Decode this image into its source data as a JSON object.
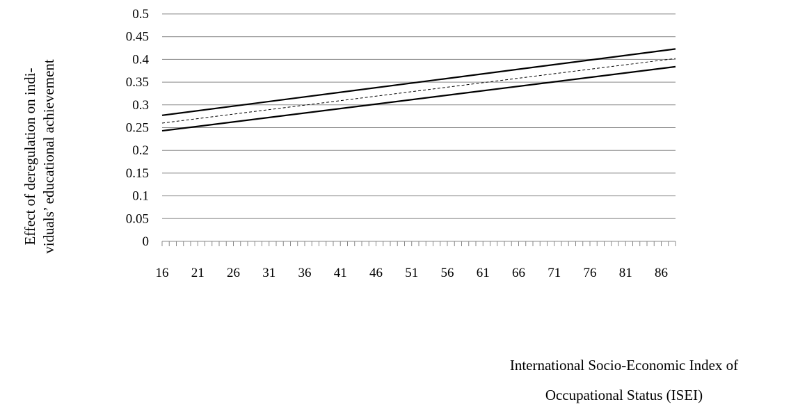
{
  "chart_data": {
    "type": "line",
    "title": "",
    "ylabel": [
      "Effect of deregulation on indi-",
      "viduals’ educational achievement"
    ],
    "xlabel": [
      "International Socio-Economic Index of",
      "Occupational Status (ISEI)"
    ],
    "xlim": [
      16,
      88
    ],
    "ylim": [
      0,
      0.5
    ],
    "ytick_labels": [
      "0",
      "0.05",
      "0.1",
      "0.15",
      "0.2",
      "0.25",
      "0.3",
      "0.35",
      "0.4",
      "0.45",
      "0.5"
    ],
    "xtick_labels": [
      "16",
      "21",
      "26",
      "31",
      "36",
      "41",
      "46",
      "51",
      "56",
      "61",
      "66",
      "71",
      "76",
      "81",
      "86"
    ],
    "grid": true,
    "series": [
      {
        "values_at": [
          16,
          88
        ],
        "values": [
          0.277,
          0.423
        ],
        "style": "solid"
      },
      {
        "values_at": [
          16,
          88
        ],
        "values": [
          0.26,
          0.402
        ],
        "style": "dashed"
      },
      {
        "values_at": [
          16,
          88
        ],
        "values": [
          0.243,
          0.384
        ],
        "style": "solid"
      }
    ]
  },
  "colors": {
    "grid": "#888888",
    "axis": "#888888",
    "line": "#000000"
  }
}
